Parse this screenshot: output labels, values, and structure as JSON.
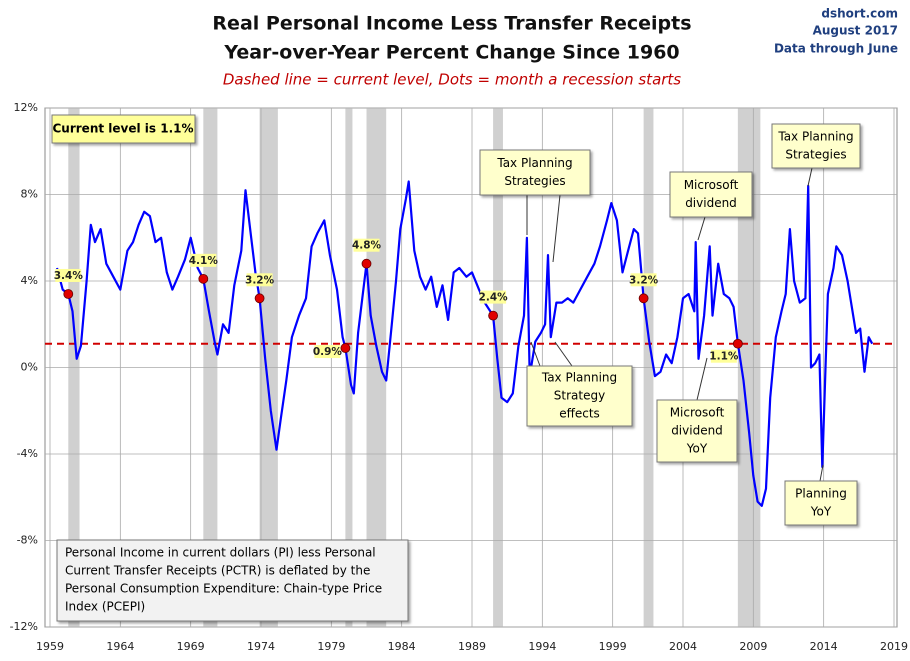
{
  "chart_data": {
    "type": "line",
    "title": "Real Personal Income Less Transfer Receipts",
    "subtitle": "Year-over-Year Percent Change Since 1960",
    "note": "Dashed line = current level, Dots = month a recession starts",
    "source": [
      "dshort.com",
      "August 2017",
      "Data through June"
    ],
    "xlim": [
      1959,
      2019
    ],
    "xticks": [
      1959,
      1964,
      1969,
      1974,
      1979,
      1984,
      1989,
      1994,
      1999,
      2004,
      2009,
      2014,
      2019
    ],
    "ylim": [
      -12,
      12
    ],
    "yticks": [
      {
        "value": -12,
        "label": "-12%"
      },
      {
        "value": -8,
        "label": "-8%"
      },
      {
        "value": -4,
        "label": "-4%"
      },
      {
        "value": 0,
        "label": "0%"
      },
      {
        "value": 4,
        "label": "4%"
      },
      {
        "value": 8,
        "label": "8%"
      },
      {
        "value": 12,
        "label": "12%"
      }
    ],
    "grid": true,
    "x": [
      1959.5,
      1959.9,
      1960.3,
      1960.6,
      1960.9,
      1961.2,
      1961.6,
      1961.9,
      1962.2,
      1962.6,
      1963.0,
      1963.5,
      1964.0,
      1964.5,
      1964.9,
      1965.3,
      1965.7,
      1966.1,
      1966.5,
      1966.9,
      1967.3,
      1967.7,
      1968.1,
      1968.6,
      1969.0,
      1969.5,
      1969.9,
      1970.3,
      1970.7,
      1970.9,
      1971.3,
      1971.7,
      1972.1,
      1972.6,
      1972.9,
      1973.3,
      1973.6,
      1973.9,
      1974.3,
      1974.7,
      1975.1,
      1975.4,
      1975.8,
      1976.2,
      1976.7,
      1977.2,
      1977.6,
      1978.0,
      1978.5,
      1978.9,
      1979.4,
      1979.8,
      1980.0,
      1980.4,
      1980.6,
      1980.9,
      1981.2,
      1981.5,
      1981.8,
      1982.2,
      1982.6,
      1982.9,
      1983.3,
      1983.6,
      1983.9,
      1984.3,
      1984.5,
      1984.9,
      1985.3,
      1985.7,
      1986.1,
      1986.5,
      1986.9,
      1987.3,
      1987.7,
      1988.1,
      1988.6,
      1989.0,
      1989.5,
      1989.9,
      1990.5,
      1990.8,
      1991.1,
      1991.5,
      1991.9,
      1992.3,
      1992.7,
      1992.9,
      1993.1,
      1993.5,
      1993.9,
      1994.2,
      1994.4,
      1994.6,
      1995.0,
      1995.4,
      1995.8,
      1996.2,
      1996.7,
      1997.2,
      1997.7,
      1998.1,
      1998.6,
      1998.9,
      1999.3,
      1999.7,
      2000.1,
      2000.5,
      2000.8,
      2001.2,
      2001.6,
      2002.0,
      2002.4,
      2002.8,
      2003.2,
      2003.6,
      2004.0,
      2004.4,
      2004.8,
      2004.9,
      2005.1,
      2005.5,
      2005.9,
      2006.1,
      2006.5,
      2006.9,
      2007.3,
      2007.6,
      2007.9,
      2008.3,
      2008.7,
      2009.0,
      2009.3,
      2009.6,
      2009.9,
      2010.2,
      2010.6,
      2011.0,
      2011.3,
      2011.6,
      2011.9,
      2012.3,
      2012.7,
      2012.9,
      2013.1,
      2013.4,
      2013.7,
      2013.9,
      2014.3,
      2014.7,
      2014.9,
      2015.3,
      2015.7,
      2016.0,
      2016.3,
      2016.6,
      2016.9,
      2017.2,
      2017.45
    ],
    "series": [
      {
        "color": "#0000ff",
        "values": [
          4.6,
          3.6,
          3.4,
          2.6,
          0.4,
          1.0,
          4.0,
          6.6,
          5.8,
          6.4,
          4.8,
          4.2,
          3.6,
          5.4,
          5.8,
          6.6,
          7.2,
          7.0,
          5.8,
          6.0,
          4.4,
          3.6,
          4.2,
          5.0,
          6.0,
          4.6,
          4.1,
          2.6,
          1.2,
          0.6,
          2.0,
          1.6,
          3.8,
          5.4,
          8.2,
          6.0,
          4.4,
          3.2,
          0.4,
          -2.0,
          -3.8,
          -2.4,
          -0.6,
          1.4,
          2.4,
          3.2,
          5.6,
          6.2,
          6.8,
          5.2,
          3.6,
          1.4,
          0.9,
          -0.8,
          -1.2,
          1.6,
          3.2,
          4.8,
          2.4,
          1.0,
          -0.2,
          -0.6,
          2.0,
          4.0,
          6.4,
          7.8,
          8.6,
          5.4,
          4.2,
          3.6,
          4.2,
          2.8,
          3.8,
          2.2,
          4.4,
          4.6,
          4.2,
          4.4,
          3.6,
          3.0,
          2.4,
          0.4,
          -1.4,
          -1.6,
          -1.2,
          1.0,
          2.4,
          6.0,
          -0.4,
          1.2,
          1.6,
          2.0,
          5.2,
          1.4,
          3.0,
          3.0,
          3.2,
          3.0,
          3.6,
          4.2,
          4.8,
          5.6,
          6.8,
          7.6,
          6.8,
          4.4,
          5.4,
          6.4,
          6.2,
          3.2,
          1.2,
          -0.4,
          -0.2,
          0.6,
          0.2,
          1.4,
          3.2,
          3.4,
          2.6,
          5.8,
          0.4,
          2.4,
          5.6,
          2.4,
          4.8,
          3.4,
          3.2,
          2.8,
          1.1,
          -0.6,
          -3.0,
          -5.0,
          -6.2,
          -6.4,
          -5.6,
          -1.4,
          1.4,
          2.6,
          3.4,
          6.4,
          4.0,
          3.0,
          3.2,
          8.4,
          0.0,
          0.2,
          0.6,
          -4.6,
          3.4,
          4.6,
          5.6,
          5.2,
          4.0,
          2.8,
          1.6,
          1.8,
          -0.2,
          1.4,
          1.1
        ]
      }
    ],
    "current_level": 1.1,
    "current_level_label": "Current level is 1.1%",
    "recessions": [
      [
        1960.3,
        1961.1
      ],
      [
        1969.9,
        1970.9
      ],
      [
        1973.9,
        1975.2
      ],
      [
        1980.0,
        1980.5
      ],
      [
        1981.5,
        1982.9
      ],
      [
        1990.5,
        1991.2
      ],
      [
        2001.2,
        2001.9
      ],
      [
        2007.9,
        2009.5
      ]
    ],
    "recession_starts": {
      "x": [
        1960.3,
        1969.9,
        1973.9,
        1980.0,
        1981.5,
        1990.5,
        2001.2,
        2007.9
      ],
      "values": [
        3.4,
        4.1,
        3.2,
        0.9,
        4.8,
        2.4,
        3.2,
        1.1
      ],
      "value_labels": [
        "3.4%",
        "4.1%",
        "3.2%",
        "0.9%",
        "4.8%",
        "2.4%",
        "3.2%",
        "1.1%"
      ]
    },
    "annotations": [
      [
        "Tax Planning",
        "Strategies"
      ],
      [
        "Microsoft",
        "dividend"
      ],
      [
        "Tax Planning",
        "Strategies"
      ],
      [
        "Tax Planning",
        "Strategy",
        "effects"
      ],
      [
        "Microsoft",
        "dividend",
        "YoY"
      ],
      [
        "Planning",
        "YoY"
      ]
    ],
    "footnote": [
      "Personal Income in current dollars  (PI) less Personal",
      "Current Transfer Receipts (PCTR) is deflated by the",
      "Personal Consumption Expenditure: Chain-type Price",
      "Index (PCEPI)"
    ]
  }
}
